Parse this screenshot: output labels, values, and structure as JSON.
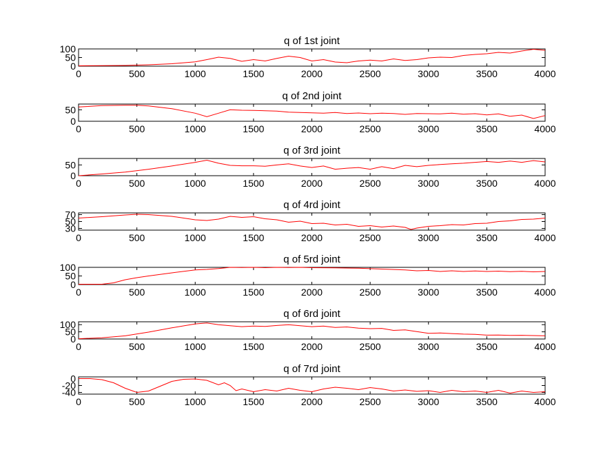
{
  "line_color": "#ff0000",
  "chart_data": [
    {
      "type": "line",
      "title": "q of 1st joint",
      "xlim": [
        0,
        4000
      ],
      "ylim": [
        0,
        100
      ],
      "xticks": [
        0,
        500,
        1000,
        1500,
        2000,
        2500,
        3000,
        3500,
        4000
      ],
      "yticks": [
        0,
        50,
        100
      ],
      "series": [
        {
          "x": [
            0,
            200,
            400,
            600,
            800,
            1000,
            1100,
            1200,
            1300,
            1400,
            1500,
            1600,
            1700,
            1800,
            1900,
            2000,
            2100,
            2200,
            2300,
            2400,
            2500,
            2600,
            2700,
            2800,
            2900,
            3000,
            3100,
            3200,
            3300,
            3400,
            3500,
            3600,
            3700,
            3800,
            3900,
            4000
          ],
          "y": [
            2,
            3,
            4,
            8,
            14,
            25,
            38,
            52,
            45,
            28,
            38,
            30,
            45,
            58,
            50,
            30,
            38,
            24,
            20,
            30,
            35,
            30,
            42,
            33,
            38,
            48,
            52,
            50,
            62,
            68,
            72,
            80,
            76,
            88,
            98,
            92
          ]
        }
      ]
    },
    {
      "type": "line",
      "title": "q of 2nd joint",
      "xlim": [
        0,
        4000
      ],
      "ylim": [
        0,
        75
      ],
      "xticks": [
        0,
        500,
        1000,
        1500,
        2000,
        2500,
        3000,
        3500,
        4000
      ],
      "yticks": [
        0,
        50
      ],
      "series": [
        {
          "x": [
            0,
            200,
            400,
            500,
            600,
            800,
            1000,
            1100,
            1200,
            1300,
            1400,
            1500,
            1600,
            1700,
            1800,
            1900,
            2000,
            2100,
            2200,
            2300,
            2400,
            2500,
            2600,
            2700,
            2800,
            2900,
            3000,
            3100,
            3200,
            3300,
            3400,
            3500,
            3600,
            3700,
            3800,
            3900,
            4000
          ],
          "y": [
            62,
            68,
            70,
            70,
            67,
            55,
            35,
            20,
            35,
            50,
            48,
            47,
            46,
            44,
            40,
            38,
            37,
            35,
            38,
            34,
            36,
            33,
            35,
            34,
            30,
            34,
            33,
            32,
            35,
            31,
            33,
            28,
            32,
            22,
            27,
            12,
            25
          ]
        }
      ]
    },
    {
      "type": "line",
      "title": "q of 3rd joint",
      "xlim": [
        0,
        4000
      ],
      "ylim": [
        0,
        80
      ],
      "xticks": [
        0,
        500,
        1000,
        1500,
        2000,
        2500,
        3000,
        3500,
        4000
      ],
      "yticks": [
        0,
        50
      ],
      "series": [
        {
          "x": [
            0,
            200,
            400,
            600,
            800,
            1000,
            1100,
            1200,
            1300,
            1400,
            1500,
            1600,
            1700,
            1800,
            1900,
            2000,
            2100,
            2200,
            2300,
            2400,
            2500,
            2600,
            2700,
            2800,
            2900,
            3000,
            3100,
            3200,
            3300,
            3400,
            3500,
            3600,
            3700,
            3800,
            3900,
            4000
          ],
          "y": [
            0,
            8,
            17,
            30,
            45,
            62,
            72,
            58,
            48,
            46,
            46,
            44,
            50,
            55,
            45,
            38,
            45,
            30,
            35,
            38,
            30,
            42,
            33,
            48,
            42,
            48,
            52,
            55,
            58,
            62,
            66,
            62,
            68,
            62,
            70,
            64
          ]
        }
      ]
    },
    {
      "type": "line",
      "title": "q of 4rd joint",
      "xlim": [
        0,
        4000
      ],
      "ylim": [
        25,
        75
      ],
      "xticks": [
        0,
        500,
        1000,
        1500,
        2000,
        2500,
        3000,
        3500,
        4000
      ],
      "yticks": [
        30,
        50,
        70
      ],
      "series": [
        {
          "x": [
            0,
            200,
            400,
            500,
            600,
            800,
            1000,
            1100,
            1200,
            1300,
            1400,
            1500,
            1600,
            1700,
            1800,
            1900,
            2000,
            2100,
            2200,
            2300,
            2400,
            2500,
            2600,
            2700,
            2800,
            2850,
            2900,
            3000,
            3100,
            3200,
            3300,
            3400,
            3500,
            3600,
            3700,
            3800,
            3900,
            4000
          ],
          "y": [
            60,
            64,
            69,
            71,
            70,
            65,
            55,
            53,
            57,
            65,
            62,
            64,
            58,
            55,
            48,
            51,
            44,
            45,
            40,
            42,
            36,
            38,
            34,
            37,
            33,
            27,
            31,
            36,
            38,
            41,
            40,
            44,
            45,
            50,
            52,
            56,
            57,
            60
          ]
        }
      ]
    },
    {
      "type": "line",
      "title": "q of 5rd joint",
      "xlim": [
        0,
        4000
      ],
      "ylim": [
        0,
        100
      ],
      "xticks": [
        0,
        500,
        1000,
        1500,
        2000,
        2500,
        3000,
        3500,
        4000
      ],
      "yticks": [
        0,
        50,
        100
      ],
      "series": [
        {
          "x": [
            0,
            100,
            200,
            300,
            400,
            500,
            600,
            800,
            1000,
            1100,
            1200,
            1300,
            1400,
            1500,
            1600,
            1700,
            1800,
            1900,
            2000,
            2200,
            2400,
            2600,
            2800,
            2900,
            3000,
            3100,
            3200,
            3300,
            3400,
            3500,
            3600,
            3700,
            3800,
            3900,
            4000
          ],
          "y": [
            2,
            2,
            2,
            10,
            28,
            40,
            50,
            68,
            85,
            88,
            93,
            100,
            99,
            100,
            98,
            100,
            99,
            100,
            98,
            97,
            95,
            90,
            85,
            80,
            82,
            76,
            80,
            76,
            79,
            76,
            78,
            75,
            77,
            74,
            76
          ]
        }
      ]
    },
    {
      "type": "line",
      "title": "q of 6rd joint",
      "xlim": [
        0,
        4000
      ],
      "ylim": [
        0,
        120
      ],
      "xticks": [
        0,
        500,
        1000,
        1500,
        2000,
        2500,
        3000,
        3500,
        4000
      ],
      "yticks": [
        0,
        50,
        100
      ],
      "series": [
        {
          "x": [
            0,
            200,
            400,
            600,
            800,
            1000,
            1100,
            1200,
            1300,
            1400,
            1500,
            1600,
            1700,
            1800,
            1900,
            2000,
            2100,
            2200,
            2300,
            2400,
            2500,
            2600,
            2700,
            2800,
            2900,
            3000,
            3100,
            3200,
            3300,
            3400,
            3500,
            3600,
            3700,
            3800,
            3900,
            4000
          ],
          "y": [
            2,
            8,
            22,
            48,
            78,
            105,
            112,
            100,
            92,
            86,
            90,
            88,
            94,
            100,
            92,
            86,
            90,
            80,
            84,
            76,
            72,
            74,
            60,
            64,
            52,
            40,
            42,
            38,
            34,
            32,
            27,
            28,
            25,
            26,
            24,
            22
          ]
        }
      ]
    },
    {
      "type": "line",
      "title": "q of 7rd joint",
      "xlim": [
        0,
        4000
      ],
      "ylim": [
        -45,
        5
      ],
      "xticks": [
        0,
        500,
        1000,
        1500,
        2000,
        2500,
        3000,
        3500,
        4000
      ],
      "yticks": [
        -40,
        -20,
        0
      ],
      "series": [
        {
          "x": [
            0,
            100,
            200,
            300,
            400,
            500,
            600,
            700,
            800,
            900,
            1000,
            1100,
            1200,
            1250,
            1300,
            1350,
            1400,
            1500,
            1600,
            1700,
            1800,
            1900,
            2000,
            2100,
            2200,
            2300,
            2400,
            2500,
            2600,
            2700,
            2800,
            2900,
            3000,
            3100,
            3200,
            3300,
            3400,
            3500,
            3600,
            3700,
            3800,
            3900,
            4000
          ],
          "y": [
            0,
            0,
            -3,
            -12,
            -28,
            -40,
            -36,
            -22,
            -8,
            -2,
            -1,
            -5,
            -18,
            -12,
            -20,
            -35,
            -30,
            -38,
            -32,
            -36,
            -28,
            -34,
            -38,
            -30,
            -25,
            -28,
            -32,
            -26,
            -30,
            -36,
            -33,
            -37,
            -35,
            -40,
            -34,
            -38,
            -36,
            -40,
            -34,
            -42,
            -36,
            -40,
            -38
          ]
        }
      ]
    }
  ]
}
